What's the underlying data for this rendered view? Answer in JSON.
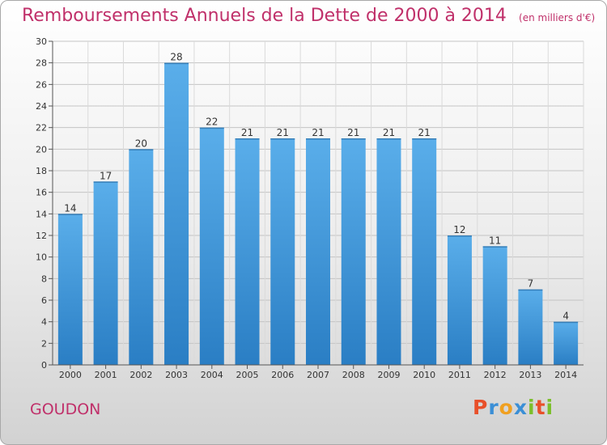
{
  "header": {
    "title": "Remboursements Annuels de la Dette de 2000 à 2014",
    "unit": "(en milliers d'€)"
  },
  "commune": "GOUDON",
  "brand": {
    "letters": [
      "P",
      "r",
      "o",
      "x",
      "i",
      "t",
      "i"
    ],
    "colors": [
      "#e8502a",
      "#3b8fd6",
      "#f0a020",
      "#3b8fd6",
      "#7cbf2b",
      "#e8502a",
      "#7cbf2b"
    ]
  },
  "colors": {
    "bar_top": "#5aaeea",
    "bar_bottom": "#2a7ec4",
    "title": "#c0306a"
  },
  "chart_data": {
    "type": "bar",
    "categories": [
      "2000",
      "2001",
      "2002",
      "2003",
      "2004",
      "2005",
      "2006",
      "2007",
      "2008",
      "2009",
      "2010",
      "2011",
      "2012",
      "2013",
      "2014"
    ],
    "values": [
      14,
      17,
      20,
      28,
      22,
      21,
      21,
      21,
      21,
      21,
      21,
      12,
      11,
      7,
      4
    ],
    "ylim": [
      0,
      30
    ],
    "yticks": [
      0,
      2,
      4,
      6,
      8,
      10,
      12,
      14,
      16,
      18,
      20,
      22,
      24,
      26,
      28,
      30
    ],
    "grid": true,
    "data_labels": true
  }
}
